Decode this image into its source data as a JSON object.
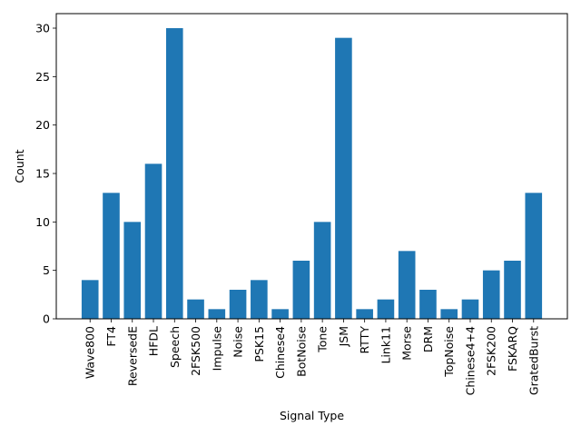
{
  "chart_data": {
    "type": "bar",
    "title": "",
    "xlabel": "Signal Type",
    "ylabel": "Count",
    "categories": [
      "Wave800",
      "FT4",
      "ReversedE",
      "HFDL",
      "Speech",
      "2FSK500",
      "Impulse",
      "Noise",
      "PSK15",
      "Chinese4",
      "BotNoise",
      "Tone",
      "JSM",
      "RTTY",
      "Link11",
      "Morse",
      "DRM",
      "TopNoise",
      "Chinese4+4",
      "2FSK200",
      "FSKARQ",
      "GratedBurst"
    ],
    "values": [
      4,
      13,
      10,
      16,
      30,
      2,
      1,
      3,
      4,
      1,
      6,
      10,
      29,
      1,
      2,
      7,
      3,
      1,
      2,
      5,
      6,
      13
    ],
    "ylim": [
      0,
      31.5
    ],
    "yticks": [
      0,
      5,
      10,
      15,
      20,
      25,
      30
    ],
    "grid": false,
    "bar_color": "#1f77b4"
  }
}
